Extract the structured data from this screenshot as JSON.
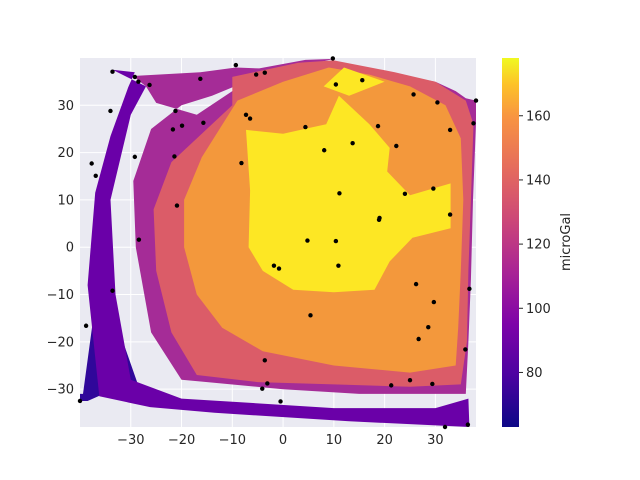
{
  "chart_data": {
    "type": "contour",
    "xlim": [
      -40,
      38
    ],
    "ylim": [
      -38,
      40
    ],
    "xticks": [
      -30,
      -20,
      -10,
      0,
      10,
      20,
      30
    ],
    "yticks": [
      -30,
      -20,
      -10,
      0,
      10,
      20,
      30
    ],
    "xticklabels": [
      "−30",
      "−20",
      "−10",
      "0",
      "10",
      "20",
      "30"
    ],
    "yticklabels": [
      "−30",
      "−20",
      "−10",
      "0",
      "10",
      "20",
      "30"
    ],
    "grid": true,
    "colormap": "plasma",
    "colorbar": {
      "label": "microGal",
      "range": [
        63,
        178
      ],
      "ticks": [
        80,
        100,
        120,
        140,
        160
      ],
      "ticklabels": [
        "80",
        "100",
        "120",
        "140",
        "160"
      ]
    },
    "contour_bands": [
      {
        "level": 70,
        "color": "#30079a",
        "polygon": [
          [
            -36.2,
            -5.6
          ],
          [
            -39.4,
            -31.0
          ],
          [
            -40,
            -31.0
          ],
          [
            -40,
            -32.5
          ],
          [
            -38.5,
            -32.5
          ],
          [
            -34.5,
            -30.6
          ],
          [
            -28.5,
            -29.3
          ],
          [
            -36.2,
            -5.6
          ]
        ]
      },
      {
        "level": 90,
        "color": "#6a00a8",
        "polygon": [
          [
            -33.6,
            37.5
          ],
          [
            -29.2,
            37.0
          ],
          [
            -30.5,
            33.8
          ],
          [
            -34.0,
            23.5
          ],
          [
            -37.0,
            11.5
          ],
          [
            -38.5,
            -8.0
          ],
          [
            -36.2,
            -31.5
          ],
          [
            -26.2,
            -33.8
          ],
          [
            -13.5,
            -35.0
          ],
          [
            13.0,
            -36.8
          ],
          [
            36.7,
            -38.0
          ],
          [
            36.5,
            -32.0
          ],
          [
            30.0,
            -34.0
          ],
          [
            10.0,
            -34.0
          ],
          [
            -20.0,
            -32.0
          ],
          [
            -30.0,
            -28.0
          ],
          [
            -33.0,
            -10.0
          ],
          [
            -34.0,
            10.0
          ],
          [
            -30.0,
            28.0
          ],
          [
            -27.0,
            34.0
          ],
          [
            -33.6,
            37.5
          ]
        ]
      },
      {
        "level": 110,
        "color": "#a52c97",
        "polygon": [
          [
            -29.6,
            36.2
          ],
          [
            -16.3,
            37.0
          ],
          [
            -9.3,
            38.0
          ],
          [
            -4.7,
            37.8
          ],
          [
            4.4,
            39.6
          ],
          [
            10.0,
            39.8
          ],
          [
            -5.0,
            36.0
          ],
          [
            -14.0,
            32.0
          ],
          [
            -20.0,
            30.0
          ],
          [
            -26.0,
            25.0
          ],
          [
            -29.5,
            14.0
          ],
          [
            -29.0,
            0.0
          ],
          [
            -26.0,
            -18.0
          ],
          [
            -20.0,
            -28.0
          ],
          [
            0.0,
            -30.0
          ],
          [
            15.0,
            -31.0
          ],
          [
            30.0,
            -31.0
          ],
          [
            36.0,
            -31.0
          ],
          [
            36.5,
            -20.0
          ],
          [
            37.0,
            -7.0
          ],
          [
            37.4,
            10.0
          ],
          [
            38.0,
            26.2
          ],
          [
            38.0,
            31.0
          ],
          [
            36.0,
            31.5
          ],
          [
            34.0,
            33.0
          ],
          [
            30.0,
            35.0
          ],
          [
            20.0,
            37.0
          ],
          [
            10.0,
            38.5
          ],
          [
            8.0,
            34.0
          ],
          [
            -2.0,
            30.0
          ],
          [
            -10.0,
            27.0
          ],
          [
            -18.0,
            23.0
          ],
          [
            -23.0,
            15.0
          ],
          [
            -26.0,
            5.0
          ],
          [
            -24.0,
            -10.0
          ],
          [
            -19.0,
            -20.0
          ],
          [
            -14.0,
            -26.0
          ],
          [
            -5.0,
            -28.0
          ],
          [
            10.0,
            -29.0
          ],
          [
            25.0,
            -29.0
          ],
          [
            33.0,
            -28.0
          ],
          [
            34.5,
            -22.0
          ],
          [
            35.0,
            -10.0
          ],
          [
            35.5,
            10.0
          ],
          [
            36.0,
            26.0
          ],
          [
            33.0,
            29.0
          ],
          [
            27.0,
            33.0
          ],
          [
            18.0,
            36.0
          ],
          [
            12.0,
            38.0
          ],
          [
            5.0,
            38.5
          ],
          [
            -3.0,
            36.0
          ],
          [
            -10.0,
            33.0
          ],
          [
            -17.0,
            28.0
          ],
          [
            -25.0,
            30.5
          ],
          [
            -27.0,
            34.0
          ],
          [
            -29.6,
            36.2
          ]
        ]
      },
      {
        "level": 130,
        "color": "#db5c68",
        "polygon": [
          [
            -10.0,
            36.0
          ],
          [
            3.0,
            39.0
          ],
          [
            10.0,
            39.5
          ],
          [
            22.0,
            37.0
          ],
          [
            30.0,
            35.0
          ],
          [
            36.0,
            31.0
          ],
          [
            37.5,
            26.0
          ],
          [
            37.0,
            10.0
          ],
          [
            36.5,
            -5.0
          ],
          [
            36.2,
            -20.0
          ],
          [
            35.0,
            -29.0
          ],
          [
            25.0,
            -29.5
          ],
          [
            10.0,
            -29.0
          ],
          [
            -5.0,
            -28.5
          ],
          [
            -17.0,
            -27.0
          ],
          [
            -22.0,
            -18.0
          ],
          [
            -25.0,
            -5.0
          ],
          [
            -25.5,
            8.0
          ],
          [
            -22.0,
            18.0
          ],
          [
            -16.0,
            24.0
          ],
          [
            -10.0,
            30.0
          ],
          [
            -10.0,
            36.0
          ]
        ]
      },
      {
        "level": 145,
        "color": "#f3983c",
        "polygon": [
          [
            -9.0,
            31.0
          ],
          [
            0.0,
            35.0
          ],
          [
            9.0,
            38.0
          ],
          [
            17.0,
            36.5
          ],
          [
            25.0,
            34.0
          ],
          [
            32.0,
            30.0
          ],
          [
            35.0,
            23.0
          ],
          [
            35.5,
            10.0
          ],
          [
            35.0,
            -5.0
          ],
          [
            34.5,
            -17.0
          ],
          [
            34.0,
            -25.0
          ],
          [
            25.0,
            -26.5
          ],
          [
            10.0,
            -25.0
          ],
          [
            -4.0,
            -22.0
          ],
          [
            -12.0,
            -17.0
          ],
          [
            -17.0,
            -10.0
          ],
          [
            -19.5,
            0.0
          ],
          [
            -19.5,
            10.0
          ],
          [
            -16.0,
            19.0
          ],
          [
            -9.0,
            31.0
          ]
        ]
      },
      {
        "level": 165,
        "color": "#fde724",
        "polygon": [
          [
            -7.3,
            24.8
          ],
          [
            -6.5,
            12.0
          ],
          [
            -6.8,
            0.0
          ],
          [
            -4.0,
            -5.0
          ],
          [
            2.0,
            -9.0
          ],
          [
            10.0,
            -9.5
          ],
          [
            18.0,
            -9.0
          ],
          [
            21.0,
            -3.0
          ],
          [
            25.5,
            2.0
          ],
          [
            33.0,
            4.0
          ],
          [
            33.0,
            13.5
          ],
          [
            25.0,
            11.0
          ],
          [
            20.5,
            16.0
          ],
          [
            21.0,
            21.0
          ],
          [
            17.0,
            26.0
          ],
          [
            11.0,
            32.0
          ],
          [
            8.5,
            26.0
          ],
          [
            0.0,
            24.0
          ],
          [
            -7.3,
            24.8
          ]
        ]
      },
      {
        "level": 165,
        "color": "#fde724",
        "polygon": [
          [
            8.0,
            34.0
          ],
          [
            12.0,
            38.0
          ],
          [
            20.0,
            35.0
          ],
          [
            13.0,
            32.0
          ],
          [
            8.0,
            34.0
          ]
        ]
      }
    ],
    "points": [
      [
        -33.6,
        37.1
      ],
      [
        -29.2,
        36.0
      ],
      [
        -28.5,
        35.0
      ],
      [
        -26.3,
        34.3
      ],
      [
        -16.3,
        35.6
      ],
      [
        -9.3,
        38.5
      ],
      [
        -5.3,
        36.5
      ],
      [
        -3.6,
        36.9
      ],
      [
        9.8,
        39.9
      ],
      [
        10.4,
        34.4
      ],
      [
        15.6,
        35.3
      ],
      [
        25.7,
        32.3
      ],
      [
        30.4,
        30.6
      ],
      [
        38.0,
        31.0
      ],
      [
        37.5,
        26.2
      ],
      [
        32.9,
        24.8
      ],
      [
        -34.0,
        28.8
      ],
      [
        -21.2,
        28.8
      ],
      [
        -19.9,
        25.7
      ],
      [
        -15.7,
        26.3
      ],
      [
        -21.7,
        24.9
      ],
      [
        -7.3,
        28.0
      ],
      [
        -6.5,
        27.2
      ],
      [
        4.4,
        25.4
      ],
      [
        18.7,
        25.6
      ],
      [
        13.7,
        22.0
      ],
      [
        22.3,
        21.4
      ],
      [
        8.1,
        20.5
      ],
      [
        -37.7,
        17.7
      ],
      [
        -36.9,
        15.1
      ],
      [
        -29.2,
        19.1
      ],
      [
        -21.4,
        19.2
      ],
      [
        -8.2,
        17.8
      ],
      [
        -20.9,
        8.8
      ],
      [
        11.1,
        11.4
      ],
      [
        24.0,
        11.3
      ],
      [
        29.6,
        12.4
      ],
      [
        32.9,
        6.9
      ],
      [
        19.0,
        6.2
      ],
      [
        18.9,
        5.8
      ],
      [
        -28.4,
        1.6
      ],
      [
        4.8,
        1.4
      ],
      [
        10.4,
        1.3
      ],
      [
        -1.8,
        -3.9
      ],
      [
        -0.8,
        -4.5
      ],
      [
        10.9,
        -3.9
      ],
      [
        -33.6,
        -9.2
      ],
      [
        26.2,
        -7.8
      ],
      [
        36.7,
        -8.8
      ],
      [
        29.7,
        -11.6
      ],
      [
        5.4,
        -14.4
      ],
      [
        -38.8,
        -16.6
      ],
      [
        28.6,
        -16.9
      ],
      [
        26.7,
        -19.4
      ],
      [
        35.9,
        -21.6
      ],
      [
        -3.6,
        -23.9
      ],
      [
        -3.1,
        -28.8
      ],
      [
        -4.1,
        -29.9
      ],
      [
        25.0,
        -28.1
      ],
      [
        21.3,
        -29.2
      ],
      [
        29.4,
        -28.9
      ],
      [
        -0.5,
        -32.6
      ],
      [
        -40.0,
        -32.5
      ],
      [
        31.9,
        -38.0
      ],
      [
        36.4,
        -37.5
      ]
    ]
  }
}
